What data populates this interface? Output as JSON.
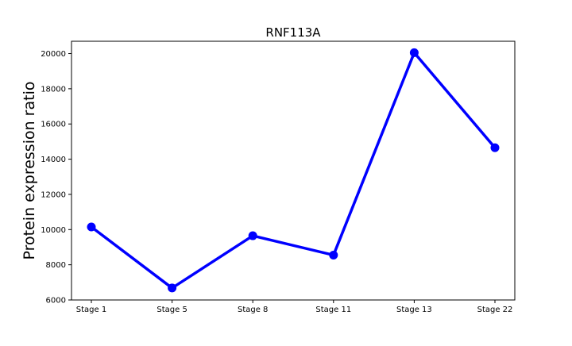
{
  "chart_data": {
    "type": "line",
    "title": "RNF113A",
    "xlabel": "",
    "ylabel": "Protein expression ratio",
    "categories": [
      "Stage 1",
      "Stage 5",
      "Stage 8",
      "Stage 11",
      "Stage 13",
      "Stage 22"
    ],
    "series": [
      {
        "values": [
          10150,
          6680,
          9650,
          8550,
          20050,
          14650
        ],
        "color": "#0000ff"
      }
    ],
    "ylim": [
      6000,
      20700
    ],
    "yticks": [
      6000,
      8000,
      10000,
      12000,
      14000,
      16000,
      18000,
      20000
    ],
    "yticks_labels": [
      "6000",
      "8000",
      "10000",
      "12000",
      "14000",
      "16000",
      "18000",
      "20000"
    ],
    "grid": false,
    "legend": "none"
  }
}
